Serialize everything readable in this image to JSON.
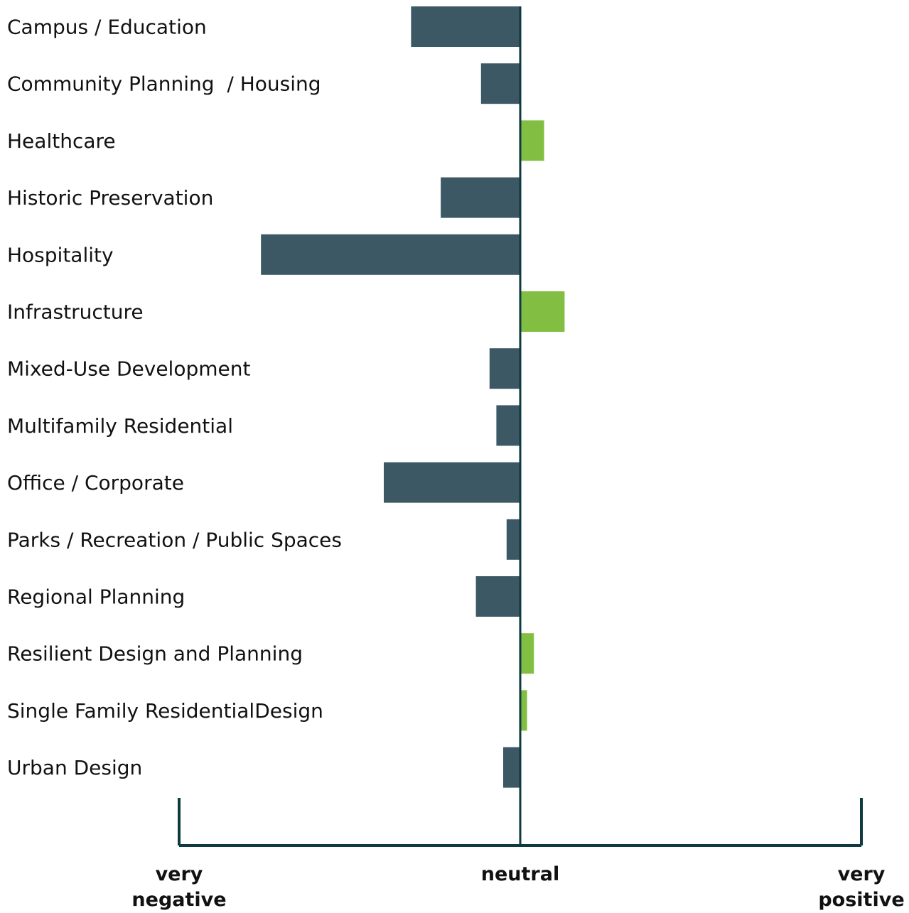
{
  "chart_data": {
    "type": "bar",
    "orientation": "horizontal",
    "categories": [
      "Campus / Education",
      "Community Planning  / Housing",
      "Healthcare",
      "Historic Preservation",
      "Hospitality",
      "Infrastructure",
      "Mixed-Use Development",
      "Multifamily Residential",
      "Office / Corporate",
      "Parks / Recreation / Public Spaces",
      "Regional Planning",
      "Resilient Design and Planning",
      "Single Family ResidentialDesign",
      "Urban Design"
    ],
    "values": [
      -0.32,
      -0.115,
      0.07,
      -0.233,
      -0.76,
      0.13,
      -0.09,
      -0.07,
      -0.4,
      -0.04,
      -0.13,
      0.04,
      0.02,
      -0.05
    ],
    "negative_color": "#3b5864",
    "positive_color": "#82be41",
    "xlim": [
      -1,
      1
    ],
    "xticks": [
      {
        "value": -1,
        "label": "very negative"
      },
      {
        "value": 0,
        "label": "neutral"
      },
      {
        "value": 1,
        "label": "very positive"
      }
    ]
  }
}
